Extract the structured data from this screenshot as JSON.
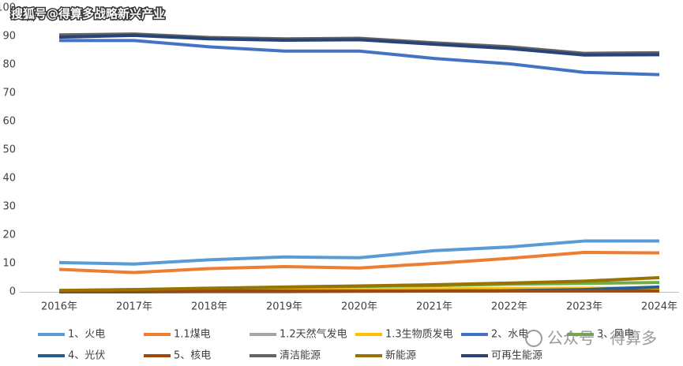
{
  "chart_data": {
    "type": "line",
    "watermark_top": "搜狐号@得算多战略新兴产业",
    "watermark_bottom": "公众号 · 得算多",
    "categories": [
      "2016年",
      "2017年",
      "2018年",
      "2019年",
      "2020年",
      "2021年",
      "2022年",
      "2023年",
      "2024年"
    ],
    "ylim": [
      0,
      100
    ],
    "yticks": [
      0,
      10,
      20,
      30,
      40,
      50,
      60,
      70,
      80,
      90,
      100
    ],
    "grid": false,
    "series": [
      {
        "name": "1、火电",
        "color": "#5b9bd5",
        "values": [
          10.3,
          9.8,
          11.3,
          12.3,
          12.0,
          14.5,
          15.8,
          17.9,
          17.9
        ]
      },
      {
        "name": "1.1煤电",
        "color": "#ed7d31",
        "values": [
          7.9,
          6.8,
          8.2,
          8.9,
          8.4,
          10.0,
          11.8,
          13.9,
          13.7
        ]
      },
      {
        "name": "1.2天然气发电",
        "color": "#a5a5a5",
        "values": [
          0.4,
          0.4,
          0.5,
          0.5,
          0.5,
          0.5,
          0.5,
          0.5,
          0.5
        ]
      },
      {
        "name": "1.3生物质发电",
        "color": "#ffc000",
        "values": [
          0.3,
          0.4,
          0.5,
          0.6,
          0.8,
          1.0,
          1.2,
          1.3,
          1.3
        ]
      },
      {
        "name": "2、水电",
        "color": "#4472c4",
        "values": [
          88.5,
          88.5,
          86.3,
          84.8,
          84.8,
          82.2,
          80.3,
          77.3,
          76.5
        ]
      },
      {
        "name": "3、风电",
        "color": "#70ad47",
        "values": [
          0.5,
          0.8,
          1.2,
          1.6,
          1.9,
          2.2,
          2.7,
          3.0,
          3.3
        ]
      },
      {
        "name": "4、光伏",
        "color": "#255e91",
        "values": [
          0.0,
          0.0,
          0.1,
          0.1,
          0.2,
          0.3,
          0.4,
          0.8,
          1.7
        ]
      },
      {
        "name": "5、核电",
        "color": "#9e480e",
        "values": [
          0.3,
          0.3,
          0.3,
          0.3,
          0.3,
          0.3,
          0.3,
          0.3,
          0.3
        ]
      },
      {
        "name": "清洁能源",
        "color": "#636363",
        "values": [
          90.5,
          90.8,
          89.6,
          89.1,
          89.3,
          87.7,
          86.3,
          84.0,
          84.2
        ]
      },
      {
        "name": "新能源",
        "color": "#997300",
        "values": [
          0.5,
          0.8,
          1.3,
          1.7,
          2.1,
          2.5,
          3.1,
          3.8,
          5.0
        ]
      },
      {
        "name": "可再生能源",
        "color": "#264478",
        "values": [
          89.7,
          90.3,
          89.1,
          88.6,
          88.8,
          87.2,
          85.7,
          83.4,
          83.5
        ]
      }
    ]
  }
}
